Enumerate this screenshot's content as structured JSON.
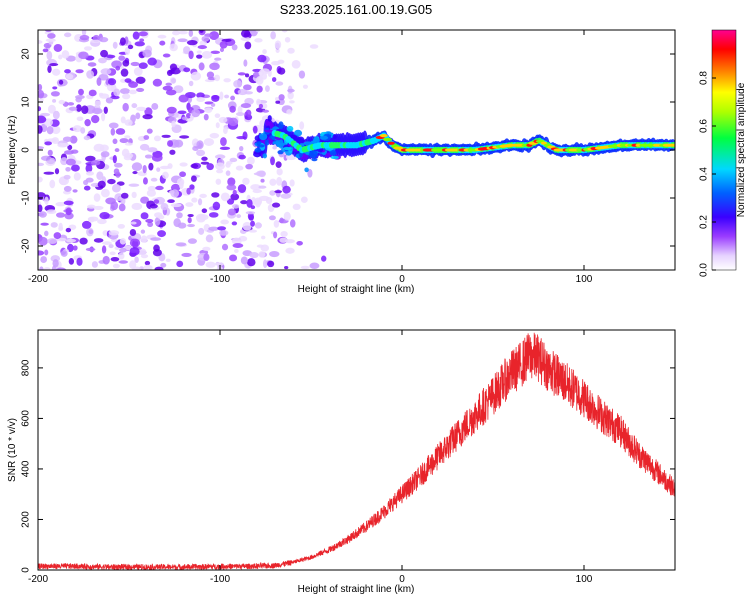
{
  "title": "S233.2025.161.00.19.G05",
  "chart_data": [
    {
      "type": "heatmap",
      "xlabel": "Height of straight line (km)",
      "ylabel": "Frequency (Hz)",
      "xlim": [
        -200,
        150
      ],
      "ylim": [
        -25,
        25
      ],
      "xticks": [
        -200,
        -100,
        0,
        100
      ],
      "yticks": [
        -20,
        -10,
        0,
        10,
        20
      ],
      "colorbar": {
        "label": "Normalized spectral amplitude",
        "range": [
          0,
          1
        ],
        "ticks": [
          0.0,
          0.2,
          0.4,
          0.6,
          0.8
        ],
        "colormap": "rainbow (white-violet-blue-cyan-green-yellow-red-magenta)"
      },
      "features": {
        "noise_region_x": [
          -200,
          -60
        ],
        "signal_ridge": [
          {
            "x": -75,
            "f": 4
          },
          {
            "x": -65,
            "f": 3
          },
          {
            "x": -55,
            "f": 0
          },
          {
            "x": -45,
            "f": 1
          },
          {
            "x": -35,
            "f": 1
          },
          {
            "x": -25,
            "f": 1
          },
          {
            "x": -15,
            "f": 2
          },
          {
            "x": -10,
            "f": 3
          },
          {
            "x": -5,
            "f": 1
          },
          {
            "x": 0,
            "f": 0
          },
          {
            "x": 20,
            "f": 0
          },
          {
            "x": 40,
            "f": 0
          },
          {
            "x": 60,
            "f": 1
          },
          {
            "x": 70,
            "f": 1
          },
          {
            "x": 75,
            "f": 2
          },
          {
            "x": 85,
            "f": 0
          },
          {
            "x": 100,
            "f": 0
          },
          {
            "x": 120,
            "f": 1
          },
          {
            "x": 150,
            "f": 1
          }
        ]
      },
      "grid": false
    },
    {
      "type": "line",
      "xlabel": "Height of straight line (km)",
      "ylabel": "SNR (10 * v/v)",
      "xlim": [
        -200,
        150
      ],
      "ylim": [
        0,
        950
      ],
      "xticks": [
        -200,
        -100,
        0,
        100
      ],
      "yticks": [
        0,
        200,
        400,
        600,
        800
      ],
      "series": [
        {
          "color": "#e8242b",
          "x": [
            -200,
            -180,
            -160,
            -140,
            -120,
            -100,
            -80,
            -70,
            -60,
            -50,
            -40,
            -30,
            -20,
            -10,
            0,
            10,
            20,
            30,
            40,
            50,
            60,
            65,
            70,
            75,
            80,
            90,
            100,
            110,
            120,
            130,
            140,
            150
          ],
          "y": [
            15,
            15,
            12,
            12,
            12,
            14,
            15,
            18,
            30,
            50,
            80,
            120,
            170,
            230,
            300,
            370,
            450,
            530,
            610,
            690,
            780,
            810,
            850,
            840,
            800,
            740,
            680,
            610,
            550,
            460,
            390,
            320
          ]
        }
      ],
      "grid": false
    }
  ]
}
